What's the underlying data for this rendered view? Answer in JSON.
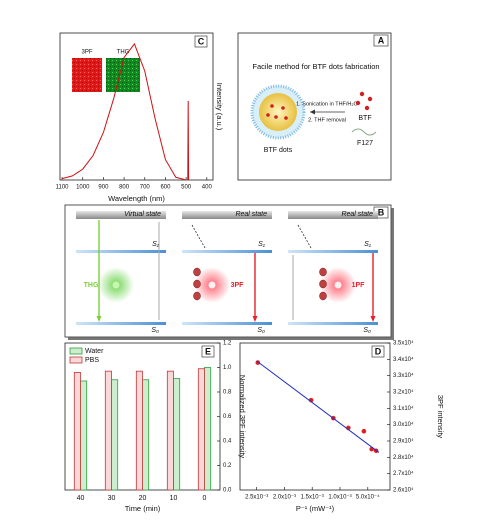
{
  "panels": {
    "A": {
      "label": "A",
      "title": "Facile method for BTF dots fabrication",
      "btf": "BTF",
      "f127": "F127",
      "step1": "1. Sonication in THF/H₂O",
      "step2": "2. THF removal",
      "product": "BTF dots"
    },
    "B": {
      "label": "B",
      "s1": "S₁",
      "s0": "S₀",
      "columns": [
        {
          "state": "Virtual state",
          "process": "THG",
          "color": "#7ccf3a"
        },
        {
          "state": "Real state",
          "process": "3PF",
          "color": "#e8202a"
        },
        {
          "state": "Real state",
          "process": "1PF",
          "color": "#e8202a"
        }
      ]
    }
  },
  "chart_data": [
    {
      "type": "line",
      "label": "C",
      "xlabel": "Wavelength (nm)",
      "ylabel": "Intensity (a.u.)",
      "yaxis_side": "right",
      "inset_labels": [
        "3PF",
        "THG"
      ],
      "xlim": [
        1110,
        370
      ],
      "ylim": [
        0,
        1.08
      ],
      "xticks": [
        400,
        500,
        600,
        700,
        800,
        900,
        1000,
        1100
      ],
      "series": [
        {
          "color": "#d01010",
          "x": [
            500,
            550,
            600,
            650,
            700,
            750,
            800,
            850,
            900,
            950,
            1000,
            1050,
            1100
          ],
          "values": [
            0,
            0.02,
            0.15,
            0.45,
            0.8,
            1.0,
            0.9,
            0.6,
            0.35,
            0.18,
            0.08,
            0.03,
            0.01
          ]
        },
        {
          "color": "#d01010",
          "x": [
            488,
            490,
            492
          ],
          "values": [
            0,
            0.58,
            0
          ]
        }
      ]
    },
    {
      "type": "scatter",
      "label": "D",
      "xlabel": "P⁻¹ (mW⁻¹)",
      "ylabel": "3PF intensity",
      "yaxis_side": "right",
      "xlim": [
        0.0028,
        0.0001
      ],
      "ylim": [
        26000,
        35000
      ],
      "xticks": [
        {
          "value": 0.0005,
          "label": "5.0x10⁻⁴"
        },
        {
          "value": 0.001,
          "label": "1.0x10⁻³"
        },
        {
          "value": 0.0015,
          "label": "1.5x10⁻³"
        },
        {
          "value": 0.002,
          "label": "2.0x10⁻³"
        },
        {
          "value": 0.0025,
          "label": "2.5x10⁻³"
        }
      ],
      "yticks": [
        {
          "value": 26000,
          "label": "2.6x10⁴"
        },
        {
          "value": 27000,
          "label": "2.7x10⁴"
        },
        {
          "value": 28000,
          "label": "2.8x10⁴"
        },
        {
          "value": 29000,
          "label": "2.9x10⁴"
        },
        {
          "value": 30000,
          "label": "3.0x10⁴"
        },
        {
          "value": 31000,
          "label": "3.1x10⁴"
        },
        {
          "value": 32000,
          "label": "3.2x10⁴"
        },
        {
          "value": 33000,
          "label": "3.3x10⁴"
        },
        {
          "value": 34000,
          "label": "3.4x10⁴"
        },
        {
          "value": 35000,
          "label": "3.5x10⁴"
        }
      ],
      "series": [
        {
          "mode": "markers",
          "color": "#e02020",
          "x": [
            0.00248,
            0.00152,
            0.00112,
            0.00085,
            0.00057,
            0.00043,
            0.00035
          ],
          "values": [
            33800,
            31500,
            30400,
            29800,
            29600,
            28500,
            28400
          ]
        },
        {
          "mode": "line",
          "color": "#2030c0",
          "x": [
            0.0025,
            0.0003
          ],
          "values": [
            33900,
            28300
          ]
        }
      ]
    },
    {
      "type": "bar",
      "label": "E",
      "xlabel": "Time (min)",
      "ylabel": "Normalized 3PF intensity",
      "yaxis_side": "right",
      "legend": "upper left",
      "categories": [
        "40",
        "30",
        "20",
        "10",
        "0"
      ],
      "ylim": [
        0,
        1.2
      ],
      "yticks": [
        {
          "value": 0,
          "label": "0.0"
        },
        0.2,
        0.4,
        0.6,
        0.8,
        {
          "value": 1,
          "label": "1.0"
        },
        1.2
      ],
      "series": [
        {
          "name": "Water",
          "color": "#cdeecd",
          "edgecolor": "#2e9e3e",
          "values": [
            0.89,
            0.9,
            0.9,
            0.91,
            1.0
          ]
        },
        {
          "name": "PBS",
          "color": "#f8d8d8",
          "edgecolor": "#c03838",
          "values": [
            0.96,
            0.97,
            0.97,
            0.97,
            0.99
          ]
        }
      ]
    }
  ]
}
